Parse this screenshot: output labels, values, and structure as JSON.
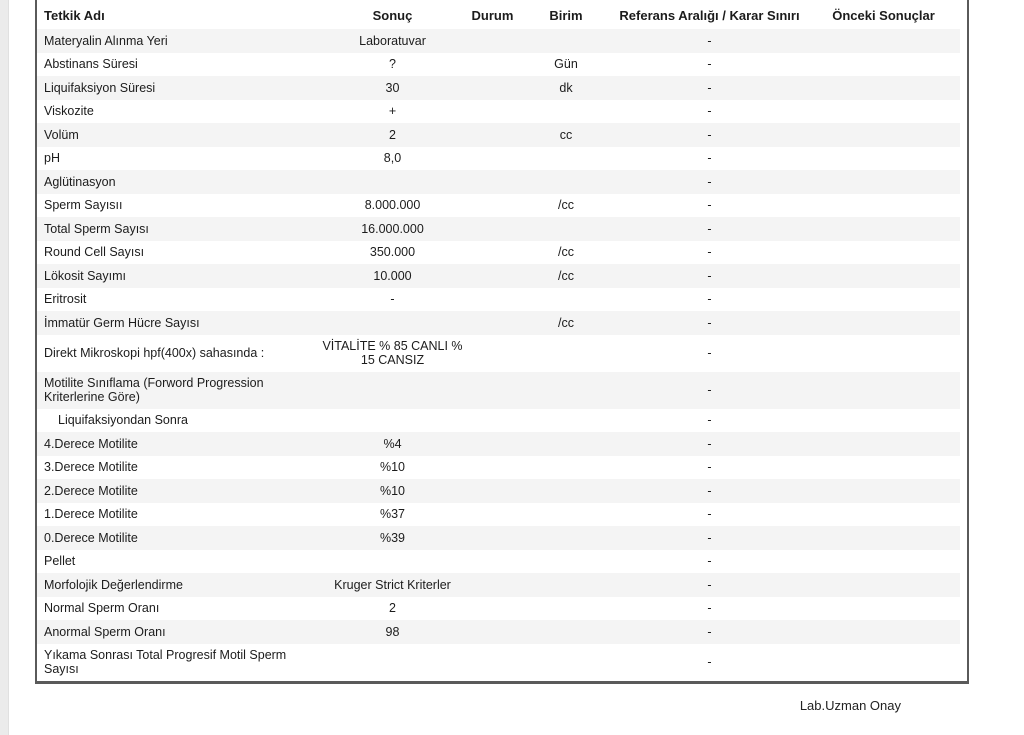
{
  "table": {
    "columns": [
      {
        "key": "name",
        "label": "Tetkik Adı"
      },
      {
        "key": "result",
        "label": "Sonuç"
      },
      {
        "key": "status",
        "label": "Durum"
      },
      {
        "key": "unit",
        "label": "Birim"
      },
      {
        "key": "reference",
        "label": "Referans Aralığı / Karar Sınırı"
      },
      {
        "key": "previous",
        "label": "Önceki Sonuçlar"
      }
    ],
    "rows": [
      {
        "name": "Materyalin Alınma Yeri",
        "result": "Laboratuvar",
        "status": "",
        "unit": "",
        "reference": "-",
        "previous": ""
      },
      {
        "name": "Abstinans Süresi",
        "result": "?",
        "status": "",
        "unit": "Gün",
        "reference": "-",
        "previous": ""
      },
      {
        "name": "Liquifaksiyon Süresi",
        "result": "30",
        "status": "",
        "unit": "dk",
        "reference": "-",
        "previous": ""
      },
      {
        "name": "Viskozite",
        "result": "+",
        "status": "",
        "unit": "",
        "reference": "-",
        "previous": ""
      },
      {
        "name": "Volüm",
        "result": "2",
        "status": "",
        "unit": "cc",
        "reference": "-",
        "previous": ""
      },
      {
        "name": "pH",
        "result": "8,0",
        "status": "",
        "unit": "",
        "reference": "-",
        "previous": ""
      },
      {
        "name": "Aglütinasyon",
        "result": "",
        "status": "",
        "unit": "",
        "reference": "-",
        "previous": ""
      },
      {
        "name": "Sperm Sayısıı",
        "result": "8.000.000",
        "status": "",
        "unit": "/cc",
        "reference": "-",
        "previous": ""
      },
      {
        "name": "Total Sperm Sayısı",
        "result": "16.000.000",
        "status": "",
        "unit": "",
        "reference": "-",
        "previous": ""
      },
      {
        "name": "Round Cell Sayısı",
        "result": "350.000",
        "status": "",
        "unit": "/cc",
        "reference": "-",
        "previous": ""
      },
      {
        "name": "Lökosit Sayımı",
        "result": "10.000",
        "status": "",
        "unit": "/cc",
        "reference": "-",
        "previous": ""
      },
      {
        "name": "Eritrosit",
        "result": "-",
        "status": "",
        "unit": "",
        "reference": "-",
        "previous": ""
      },
      {
        "name": "İmmatür Germ Hücre Sayısı",
        "result": "",
        "status": "",
        "unit": "/cc",
        "reference": "-",
        "previous": ""
      },
      {
        "name": "Direkt Mikroskopi hpf(400x) sahasında :",
        "result": "VİTALİTE % 85 CANLI % 15 CANSIZ",
        "status": "",
        "unit": "",
        "reference": "-",
        "previous": ""
      },
      {
        "name": "Motilite Sınıflama (Forword Progression Kriterlerine Göre)",
        "result": "",
        "status": "",
        "unit": "",
        "reference": "-",
        "previous": ""
      },
      {
        "name": "Liquifaksiyondan Sonra",
        "result": "",
        "status": "",
        "unit": "",
        "reference": "-",
        "previous": "",
        "indent": true
      },
      {
        "name": "4.Derece Motilite",
        "result": "%4",
        "status": "",
        "unit": "",
        "reference": "-",
        "previous": ""
      },
      {
        "name": "3.Derece Motilite",
        "result": "%10",
        "status": "",
        "unit": "",
        "reference": "-",
        "previous": ""
      },
      {
        "name": "2.Derece Motilite",
        "result": "%10",
        "status": "",
        "unit": "",
        "reference": "-",
        "previous": ""
      },
      {
        "name": "1.Derece Motilite",
        "result": "%37",
        "status": "",
        "unit": "",
        "reference": "-",
        "previous": ""
      },
      {
        "name": "0.Derece Motilite",
        "result": "%39",
        "status": "",
        "unit": "",
        "reference": "-",
        "previous": ""
      },
      {
        "name": "Pellet",
        "result": "",
        "status": "",
        "unit": "",
        "reference": "-",
        "previous": ""
      },
      {
        "name": "Morfolojik Değerlendirme",
        "result": "Kruger Strict Kriterler",
        "status": "",
        "unit": "",
        "reference": "-",
        "previous": ""
      },
      {
        "name": "Normal Sperm Oranı",
        "result": "2",
        "status": "",
        "unit": "",
        "reference": "-",
        "previous": ""
      },
      {
        "name": "Anormal Sperm Oranı",
        "result": "98",
        "status": "",
        "unit": "",
        "reference": "-",
        "previous": ""
      },
      {
        "name": "Yıkama Sonrası Total Progresif Motil Sperm Sayısı",
        "result": "",
        "status": "",
        "unit": "",
        "reference": "-",
        "previous": ""
      }
    ]
  },
  "footer": {
    "approval_label": "Lab.Uzman Onay"
  },
  "colors": {
    "stripe": "#f4f4f4",
    "border": "#5a5a5a",
    "text": "#1c1c1c"
  }
}
